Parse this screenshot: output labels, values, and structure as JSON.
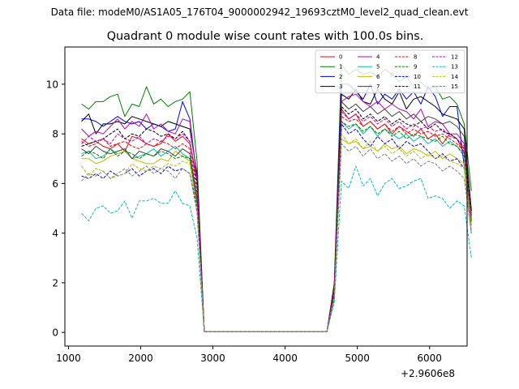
{
  "chart_data": {
    "type": "line",
    "suptitle": "Data file: modeM0/AS1A05_176T04_9000002942_19693cztM0_level2_quad_clean.evt",
    "title": "Quadrant 0 module wise count rates with 100.0s bins.",
    "xlabel": "",
    "ylabel": "",
    "offset_label": "+2.9606e8",
    "xlim": [
      950,
      6520
    ],
    "ylim": [
      -0.55,
      11.5
    ],
    "xticks": [
      1000,
      2000,
      3000,
      4000,
      5000,
      6000
    ],
    "xtick_labels": [
      "1000",
      "2000",
      "3000",
      "4000",
      "5000",
      "6000"
    ],
    "yticks": [
      0,
      2,
      4,
      6,
      8,
      10
    ],
    "ytick_labels": [
      "0",
      "2",
      "4",
      "6",
      "8",
      "10"
    ],
    "legend_location": "upper right",
    "legend_columns": 4,
    "x_first": 1180,
    "x_step": 100,
    "gap_start_index": 17,
    "gap_end_index": 34,
    "gap_value": 0.03,
    "series": [
      {
        "name": "0",
        "color": "#ff0000",
        "dash": "solid",
        "pre": [
          7.8,
          7.6,
          7.7,
          7.5,
          7.4,
          7.6,
          7.3,
          7.9,
          7.8,
          7.6,
          7.5,
          7.6,
          8.0,
          7.7,
          7.9,
          7.6,
          6.2
        ],
        "post": [
          1.6,
          9.0,
          8.6,
          8.8,
          8.3,
          8.5,
          8.2,
          8.4,
          8.0,
          8.3,
          8.1,
          7.9,
          8.2,
          7.8,
          8.0,
          7.6,
          8.0,
          7.8,
          7.2,
          4.8
        ]
      },
      {
        "name": "1",
        "color": "#008000",
        "dash": "solid",
        "pre": [
          9.2,
          9.0,
          9.3,
          9.3,
          9.5,
          9.6,
          8.7,
          9.2,
          9.1,
          9.9,
          9.2,
          9.4,
          9.1,
          9.3,
          9.4,
          9.7,
          6.9
        ],
        "post": [
          2.0,
          10.8,
          10.4,
          10.6,
          10.4,
          10.5,
          10.3,
          10.6,
          10.4,
          10.1,
          10.3,
          9.9,
          10.1,
          9.8,
          9.9,
          9.4,
          9.5,
          9.2,
          8.4,
          5.7
        ]
      },
      {
        "name": "2",
        "color": "#0000ff",
        "dash": "solid",
        "pre": [
          8.6,
          8.6,
          8.5,
          8.3,
          8.5,
          8.7,
          8.5,
          8.4,
          8.5,
          8.2,
          8.4,
          8.3,
          8.1,
          8.2,
          9.3,
          8.6,
          6.2
        ],
        "post": [
          1.8,
          10.0,
          10.0,
          9.7,
          9.4,
          10.0,
          9.2,
          9.6,
          9.4,
          9.8,
          9.4,
          9.7,
          9.2,
          9.9,
          9.5,
          8.7,
          9.1,
          9.1,
          6.7,
          4.3
        ]
      },
      {
        "name": "3",
        "color": "#000000",
        "dash": "solid",
        "pre": [
          8.5,
          8.8,
          8.0,
          8.4,
          8.4,
          8.5,
          8.4,
          8.7,
          8.6,
          8.5,
          8.4,
          8.3,
          8.5,
          8.4,
          8.3,
          8.2,
          6.4
        ],
        "post": [
          1.9,
          9.6,
          9.4,
          9.8,
          9.3,
          9.2,
          9.8,
          9.4,
          9.2,
          9.7,
          9.0,
          9.4,
          9.5,
          9.3,
          9.1,
          8.8,
          8.7,
          8.6,
          8.2,
          4.9
        ]
      },
      {
        "name": "4",
        "color": "#bf00bf",
        "dash": "solid",
        "pre": [
          8.2,
          7.9,
          8.1,
          8.0,
          8.3,
          8.6,
          8.2,
          8.5,
          8.3,
          8.8,
          8.2,
          8.4,
          8.1,
          8.0,
          8.6,
          8.5,
          6.2
        ],
        "post": [
          1.8,
          9.3,
          9.5,
          9.6,
          9.3,
          9.1,
          9.3,
          9.0,
          9.2,
          9.0,
          8.9,
          8.6,
          9.0,
          8.3,
          8.5,
          8.4,
          8.0,
          8.0,
          7.6,
          4.5
        ]
      },
      {
        "name": "5",
        "color": "#00bfa0",
        "dash": "solid",
        "pre": [
          7.2,
          7.3,
          7.0,
          7.1,
          7.4,
          7.2,
          7.3,
          7.0,
          7.1,
          7.2,
          7.4,
          7.1,
          7.3,
          7.5,
          7.2,
          7.0,
          5.2
        ],
        "post": [
          1.5,
          8.5,
          8.2,
          8.4,
          8.0,
          8.3,
          7.9,
          8.2,
          8.0,
          7.8,
          8.0,
          7.7,
          7.9,
          7.6,
          7.8,
          7.5,
          7.7,
          7.5,
          7.2,
          4.6
        ]
      },
      {
        "name": "6",
        "color": "#bfbf00",
        "dash": "solid",
        "pre": [
          7.0,
          7.0,
          6.8,
          6.9,
          7.1,
          7.2,
          7.3,
          7.0,
          6.9,
          6.8,
          6.8,
          7.0,
          6.9,
          7.3,
          7.1,
          6.9,
          5.0
        ],
        "post": [
          1.4,
          7.8,
          7.6,
          7.7,
          7.4,
          7.5,
          7.3,
          7.6,
          7.4,
          7.5,
          7.2,
          7.4,
          7.3,
          7.1,
          7.3,
          7.0,
          7.2,
          7.0,
          6.8,
          4.3
        ]
      },
      {
        "name": "7",
        "color": "#404040",
        "dash": "solid",
        "pre": [
          7.4,
          7.2,
          7.5,
          7.3,
          7.2,
          7.3,
          7.4,
          7.0,
          7.3,
          7.2,
          7.1,
          7.4,
          7.3,
          7.1,
          7.4,
          7.2,
          5.4
        ],
        "post": [
          1.6,
          9.3,
          9.0,
          9.2,
          8.9,
          9.1,
          8.8,
          9.0,
          8.7,
          8.9,
          8.6,
          8.8,
          8.5,
          8.7,
          8.6,
          8.4,
          8.5,
          8.3,
          7.9,
          4.7
        ]
      },
      {
        "name": "8",
        "color": "#ff0000",
        "dash": "dashed",
        "pre": [
          7.7,
          7.5,
          7.6,
          7.8,
          7.5,
          7.6,
          7.7,
          7.5,
          7.4,
          7.6,
          7.5,
          7.7,
          7.6,
          7.4,
          7.6,
          7.4,
          5.6
        ],
        "post": [
          1.6,
          8.7,
          8.5,
          8.6,
          8.3,
          8.5,
          8.2,
          8.4,
          8.1,
          8.3,
          8.0,
          8.2,
          8.0,
          8.1,
          7.9,
          8.0,
          7.8,
          7.6,
          7.3,
          4.5
        ]
      },
      {
        "name": "9",
        "color": "#008000",
        "dash": "dashed",
        "pre": [
          7.1,
          7.3,
          7.2,
          7.0,
          7.4,
          7.1,
          7.3,
          7.2,
          7.0,
          7.2,
          7.1,
          7.3,
          7.2,
          7.0,
          7.1,
          7.0,
          5.2
        ],
        "post": [
          1.5,
          8.5,
          8.3,
          8.4,
          8.1,
          8.3,
          8.0,
          8.2,
          7.9,
          8.1,
          7.8,
          8.0,
          7.9,
          7.8,
          7.7,
          7.9,
          7.6,
          7.5,
          7.1,
          4.4
        ]
      },
      {
        "name": "10",
        "color": "#0000ff",
        "dash": "dashed",
        "pre": [
          6.3,
          6.2,
          6.4,
          6.2,
          6.5,
          6.3,
          6.4,
          6.6,
          6.3,
          6.5,
          6.6,
          6.4,
          6.7,
          6.5,
          6.6,
          6.4,
          5.0
        ],
        "post": [
          1.4,
          8.4,
          8.0,
          8.2,
          7.8,
          7.5,
          7.9,
          7.6,
          7.8,
          7.4,
          7.7,
          7.5,
          7.6,
          7.3,
          7.0,
          7.2,
          6.9,
          7.0,
          6.6,
          4.0
        ]
      },
      {
        "name": "11",
        "color": "#000000",
        "dash": "dashed",
        "pre": [
          7.5,
          7.6,
          7.7,
          7.8,
          8.0,
          8.2,
          7.8,
          8.0,
          7.9,
          8.2,
          8.1,
          7.9,
          8.0,
          7.8,
          8.1,
          7.7,
          6.0
        ],
        "post": [
          1.7,
          9.1,
          8.8,
          9.0,
          8.6,
          8.8,
          8.5,
          8.7,
          8.4,
          8.6,
          8.4,
          8.3,
          8.5,
          8.2,
          8.4,
          8.1,
          8.0,
          7.8,
          7.4,
          4.9
        ]
      },
      {
        "name": "12",
        "color": "#bf00bf",
        "dash": "dashed",
        "pre": [
          7.6,
          7.9,
          7.7,
          7.8,
          7.6,
          8.0,
          7.8,
          7.7,
          7.9,
          7.6,
          7.8,
          7.7,
          7.9,
          7.8,
          8.0,
          7.7,
          5.8
        ],
        "post": [
          1.7,
          8.9,
          8.6,
          8.8,
          8.5,
          8.7,
          8.4,
          8.6,
          8.3,
          8.5,
          8.2,
          8.4,
          8.2,
          8.3,
          8.1,
          8.2,
          7.9,
          7.8,
          7.5,
          4.7
        ]
      },
      {
        "name": "13",
        "color": "#00bfbf",
        "dash": "dashed",
        "pre": [
          4.8,
          4.5,
          5.0,
          5.1,
          4.8,
          4.9,
          5.3,
          4.6,
          5.3,
          5.3,
          5.4,
          5.2,
          5.2,
          5.7,
          5.2,
          5.1,
          3.8
        ],
        "post": [
          1.2,
          6.1,
          5.8,
          6.7,
          5.9,
          6.2,
          5.5,
          6.0,
          6.2,
          5.8,
          5.9,
          6.1,
          6.2,
          5.4,
          5.5,
          5.4,
          5.0,
          5.3,
          5.1,
          3.0
        ]
      },
      {
        "name": "14",
        "color": "#bfbf00",
        "dash": "dashed",
        "pre": [
          6.7,
          6.3,
          6.6,
          6.5,
          6.2,
          6.3,
          6.4,
          6.8,
          6.6,
          6.5,
          6.7,
          6.6,
          6.8,
          6.7,
          6.9,
          6.8,
          5.0
        ],
        "post": [
          1.4,
          8.0,
          7.6,
          7.8,
          7.4,
          7.7,
          7.3,
          7.5,
          7.2,
          7.4,
          7.1,
          7.3,
          7.0,
          7.2,
          7.0,
          7.1,
          6.9,
          6.8,
          6.6,
          4.2
        ]
      },
      {
        "name": "15",
        "color": "#808080",
        "dash": "dashed",
        "pre": [
          6.1,
          6.4,
          6.3,
          6.5,
          6.2,
          6.4,
          6.6,
          6.3,
          6.5,
          6.7,
          6.4,
          6.6,
          6.5,
          6.2,
          6.6,
          6.4,
          4.8
        ],
        "post": [
          1.3,
          7.6,
          7.3,
          7.5,
          7.1,
          7.4,
          7.0,
          7.2,
          6.9,
          7.1,
          6.8,
          7.0,
          6.7,
          6.9,
          6.8,
          6.5,
          6.7,
          6.5,
          6.2,
          4.0
        ]
      }
    ]
  }
}
